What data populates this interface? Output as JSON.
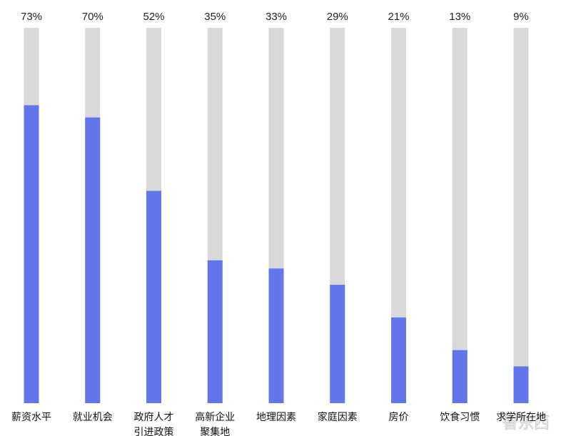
{
  "chart_data": {
    "type": "bar",
    "categories": [
      [
        "薪资水平"
      ],
      [
        "就业机会"
      ],
      [
        "政府人才",
        "引进政策"
      ],
      [
        "高新企业",
        "聚集地"
      ],
      [
        "地理因素"
      ],
      [
        "家庭因素"
      ],
      [
        "房价"
      ],
      [
        "饮食习惯"
      ],
      [
        "求学所在地"
      ]
    ],
    "values": [
      73,
      70,
      52,
      35,
      33,
      29,
      21,
      13,
      9
    ],
    "value_labels": [
      "73%",
      "70%",
      "52%",
      "35%",
      "33%",
      "29%",
      "21%",
      "13%",
      "9%"
    ],
    "ylim": [
      0,
      100
    ],
    "bar_color": "#6275EA",
    "track_color": "#D9D9D9",
    "grid": false,
    "title": "",
    "xlabel": "",
    "ylabel": ""
  },
  "watermark": "智东西"
}
